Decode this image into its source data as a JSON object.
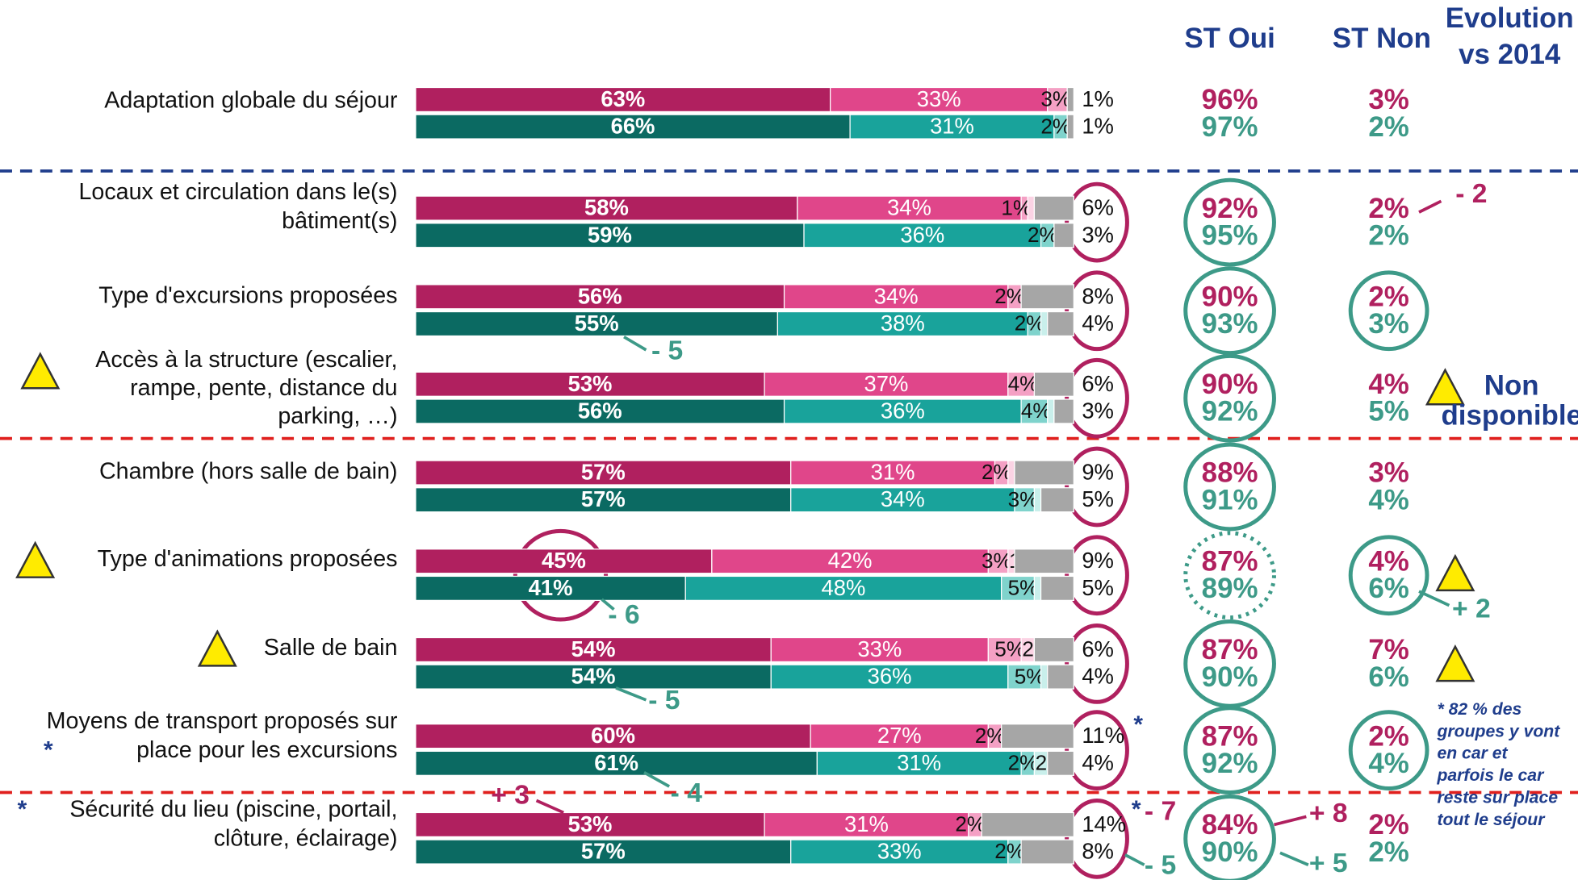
{
  "chart_data": {
    "type": "paired_stacked_bar",
    "headers": {
      "st_oui": "ST Oui",
      "st_non": "ST Non",
      "evolution": [
        "Evolution",
        "vs 2014"
      ]
    },
    "palettes": [
      [
        "#b0205f",
        "#e0468a",
        "#f4a0c4",
        "#fbd3e4",
        "#a6a6a6"
      ],
      [
        "#0b6a62",
        "#19a39b",
        "#7fd3cc",
        "#c9efeb",
        "#a6a6a6"
      ]
    ],
    "st_colors": [
      "#b0205f",
      "#3d9a88"
    ],
    "xlim": [
      0,
      100
    ],
    "rows": [
      {
        "label": [
          "Adaptation globale du séjour"
        ],
        "bars": [
          {
            "values": [
              63,
              33,
              3,
              1
            ],
            "value_labels": [
              "63%",
              "33%",
              "3%",
              "1%"
            ]
          },
          {
            "values": [
              66,
              31,
              2,
              1
            ],
            "value_labels": [
              "66%",
              "31%",
              "2%",
              "1%"
            ]
          }
        ],
        "st_oui": [
          "96%",
          "97%"
        ],
        "st_non": [
          "3%",
          "2%"
        ]
      },
      {
        "label": [
          "Locaux et circulation dans le(s)",
          "bâtiment(s)"
        ],
        "bars": [
          {
            "values": [
              58,
              34,
              1,
              1,
              6
            ],
            "value_labels": [
              "58%",
              "34%",
              "1%",
              null,
              "6%"
            ]
          },
          {
            "values": [
              59,
              36,
              2,
              3
            ],
            "value_labels": [
              "59%",
              "36%",
              "2%",
              "3%"
            ]
          }
        ],
        "st_oui": [
          "92%",
          "95%"
        ],
        "st_non": [
          "2%",
          "2%"
        ],
        "evolution": [
          "- 2"
        ]
      },
      {
        "label": [
          "Type d'excursions proposées"
        ],
        "bars": [
          {
            "values": [
              56,
              34,
              2,
              8
            ],
            "value_labels": [
              "56%",
              "34%",
              "2%",
              "8%"
            ]
          },
          {
            "values": [
              55,
              38,
              2,
              1,
              4
            ],
            "value_labels": [
              "55%",
              "38%",
              "2%",
              null,
              "4%"
            ]
          }
        ],
        "st_oui": [
          "90%",
          "93%"
        ],
        "st_non": [
          "2%",
          "3%"
        ],
        "evolution": [
          "- 5"
        ]
      },
      {
        "label": [
          "Accès à la structure (escalier,",
          "rampe, pente, distance du",
          "parking, …)"
        ],
        "bars": [
          {
            "values": [
              53,
              37,
              4,
              6
            ],
            "value_labels": [
              "53%",
              "37%",
              "4%",
              "6%"
            ]
          },
          {
            "values": [
              56,
              36,
              4,
              1,
              3
            ],
            "value_labels": [
              "56%",
              "36%",
              "4%",
              null,
              "3%"
            ]
          }
        ],
        "st_oui": [
          "90%",
          "92%"
        ],
        "st_non": [
          "4%",
          "5%"
        ],
        "status": [
          "Non",
          "disponible"
        ]
      },
      {
        "label": [
          "Chambre (hors salle de bain)"
        ],
        "bars": [
          {
            "values": [
              57,
              31,
              2,
              1,
              9
            ],
            "value_labels": [
              "57%",
              "31%",
              "2%",
              null,
              "9%"
            ]
          },
          {
            "values": [
              57,
              34,
              3,
              1,
              5
            ],
            "value_labels": [
              "57%",
              "34%",
              "3%",
              null,
              "5%"
            ]
          }
        ],
        "st_oui": [
          "88%",
          "91%"
        ],
        "st_non": [
          "3%",
          "4%"
        ]
      },
      {
        "label": [
          "Type d'animations proposées"
        ],
        "bars": [
          {
            "values": [
              45,
              42,
              3,
              1,
              9
            ],
            "value_labels": [
              "45%",
              "42%",
              "3%",
              "1%",
              "9%"
            ]
          },
          {
            "values": [
              41,
              48,
              5,
              1,
              5
            ],
            "value_labels": [
              "41%",
              "48%",
              "5%",
              null,
              "5%"
            ]
          }
        ],
        "st_oui": [
          "87%",
          "89%"
        ],
        "st_non": [
          "4%",
          "6%"
        ],
        "evolution": [
          "- 6",
          "+ 2"
        ]
      },
      {
        "label": [
          "Salle de bain"
        ],
        "bars": [
          {
            "values": [
              54,
              33,
              5,
              2,
              6
            ],
            "value_labels": [
              "54%",
              "33%",
              "5%",
              "2%",
              "6%"
            ]
          },
          {
            "values": [
              54,
              36,
              5,
              1,
              4
            ],
            "value_labels": [
              "54%",
              "36%",
              "5%",
              null,
              "4%"
            ]
          }
        ],
        "st_oui": [
          "87%",
          "90%"
        ],
        "st_non": [
          "7%",
          "6%"
        ],
        "evolution": [
          "- 5"
        ]
      },
      {
        "label": [
          "Moyens de transport proposés sur",
          "place pour les excursions"
        ],
        "bars": [
          {
            "values": [
              60,
              27,
              2,
              11
            ],
            "value_labels": [
              "60%",
              "27%",
              "2%",
              "11%"
            ]
          },
          {
            "values": [
              61,
              31,
              2,
              2,
              4
            ],
            "value_labels": [
              "61%",
              "31%",
              "2%",
              "2%",
              "4%"
            ]
          }
        ],
        "st_oui": [
          "87%",
          "92%"
        ],
        "st_non": [
          "2%",
          "4%"
        ],
        "evolution": [
          "- 4"
        ],
        "asterisks": [
          "*",
          "*"
        ],
        "note": [
          "* 82 % des",
          "groupes y vont",
          "en car et",
          "parfois le car",
          "reste sur place",
          "tout le séjour"
        ]
      },
      {
        "label": [
          "Sécurité du lieu (piscine, portail,",
          "clôture, éclairage)"
        ],
        "bars": [
          {
            "values": [
              53,
              31,
              2,
              14
            ],
            "value_labels": [
              "53%",
              "31%",
              "2%",
              "14%"
            ]
          },
          {
            "values": [
              57,
              33,
              2,
              8
            ],
            "value_labels": [
              "57%",
              "33%",
              "2%",
              "8%"
            ]
          }
        ],
        "st_oui": [
          "84%",
          "90%"
        ],
        "st_non": [
          "2%",
          "2%"
        ],
        "evolution": [
          "+ 3",
          "- 7",
          "- 5",
          "+ 8",
          "+ 5"
        ],
        "asterisks": [
          "*",
          "*"
        ]
      }
    ]
  }
}
